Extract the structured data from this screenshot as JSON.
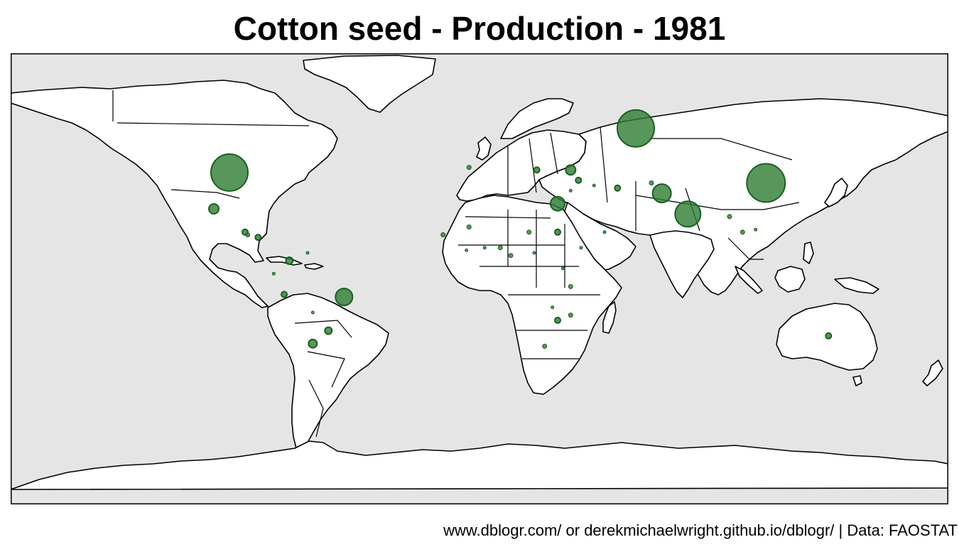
{
  "title": "Cotton seed - Production - 1981",
  "caption": "www.dblogr.com/ or derekmichaelwright.github.io/dblogr/ | Data: FAOSTAT",
  "colors": {
    "ocean": "#e5e5e5",
    "land": "#ffffff",
    "border": "#000000",
    "bubble_fill": "#2e7d32",
    "bubble_stroke": "#1b5e20"
  },
  "map_data": {
    "type": "proportional-symbol-map",
    "metric": "Cotton seed production",
    "year": 1981,
    "note": "Bubble size encodes relative production (approximate, read from symbol sizes)",
    "points": [
      {
        "country": "USSR",
        "lon": 60,
        "lat": 55,
        "size": 26
      },
      {
        "country": "China",
        "lon": 110,
        "lat": 34,
        "size": 27
      },
      {
        "country": "United States",
        "lon": -96,
        "lat": 38,
        "size": 26
      },
      {
        "country": "India",
        "lon": 80,
        "lat": 22,
        "size": 18
      },
      {
        "country": "Pakistan",
        "lon": 70,
        "lat": 30,
        "size": 13
      },
      {
        "country": "Brazil",
        "lon": -52,
        "lat": -10,
        "size": 12
      },
      {
        "country": "Egypt",
        "lon": 30,
        "lat": 26,
        "size": 10
      },
      {
        "country": "Mexico",
        "lon": -102,
        "lat": 24,
        "size": 7
      },
      {
        "country": "Turkey",
        "lon": 35,
        "lat": 39,
        "size": 7
      },
      {
        "country": "Argentina",
        "lon": -64,
        "lat": -28,
        "size": 6
      },
      {
        "country": "Sudan",
        "lon": 30,
        "lat": 15,
        "size": 4
      },
      {
        "country": "Colombia",
        "lon": -73,
        "lat": 4,
        "size": 5
      },
      {
        "country": "Greece",
        "lon": 22,
        "lat": 39,
        "size": 4
      },
      {
        "country": "Syria",
        "lon": 38,
        "lat": 35,
        "size": 4
      },
      {
        "country": "Iran",
        "lon": 53,
        "lat": 32,
        "size": 4
      },
      {
        "country": "Afghanistan",
        "lon": 66,
        "lat": 34,
        "size": 3
      },
      {
        "country": "Nicaragua",
        "lon": -85,
        "lat": 13,
        "size": 4
      },
      {
        "country": "Guatemala",
        "lon": -90,
        "lat": 15,
        "size": 4
      },
      {
        "country": "El Salvador",
        "lon": -89,
        "lat": 14,
        "size": 3
      },
      {
        "country": "Peru",
        "lon": -75,
        "lat": -9,
        "size": 4
      },
      {
        "country": "Paraguay",
        "lon": -58,
        "lat": -23,
        "size": 5
      },
      {
        "country": "Tanzania",
        "lon": 35,
        "lat": -6,
        "size": 3
      },
      {
        "country": "Mozambique",
        "lon": 35,
        "lat": -17,
        "size": 3
      },
      {
        "country": "Zimbabwe",
        "lon": 30,
        "lat": -19,
        "size": 4
      },
      {
        "country": "South Africa",
        "lon": 25,
        "lat": -29,
        "size": 3
      },
      {
        "country": "Australia",
        "lon": 134,
        "lat": -25,
        "size": 4
      },
      {
        "country": "Spain",
        "lon": -4,
        "lat": 40,
        "size": 3
      },
      {
        "country": "Chad",
        "lon": 19,
        "lat": 15,
        "size": 3
      },
      {
        "country": "Mali",
        "lon": -4,
        "lat": 17,
        "size": 3
      },
      {
        "country": "Ivory Coast",
        "lon": -5,
        "lat": 8,
        "size": 2
      },
      {
        "country": "Nigeria",
        "lon": 8,
        "lat": 9,
        "size": 3
      },
      {
        "country": "Cameroon",
        "lon": 12,
        "lat": 6,
        "size": 3
      },
      {
        "country": "Uganda",
        "lon": 32,
        "lat": 1,
        "size": 2
      },
      {
        "country": "Ethiopia",
        "lon": 39,
        "lat": 9,
        "size": 2
      },
      {
        "country": "Burma",
        "lon": 96,
        "lat": 21,
        "size": 3
      },
      {
        "country": "Thailand",
        "lon": 101,
        "lat": 15,
        "size": 3
      },
      {
        "country": "Senegal",
        "lon": -14,
        "lat": 14,
        "size": 3
      },
      {
        "country": "Benin",
        "lon": 2,
        "lat": 9,
        "size": 2
      },
      {
        "country": "Central African Rep.",
        "lon": 21,
        "lat": 7,
        "size": 2
      },
      {
        "country": "Zambia",
        "lon": 28,
        "lat": -14,
        "size": 2
      },
      {
        "country": "Venezuela",
        "lon": -66,
        "lat": 7,
        "size": 2
      },
      {
        "country": "Bolivia",
        "lon": -64,
        "lat": -16,
        "size": 2
      },
      {
        "country": "Ecuador",
        "lon": -79,
        "lat": -1,
        "size": 2
      },
      {
        "country": "Iraq",
        "lon": 44,
        "lat": 33,
        "size": 2
      },
      {
        "country": "Israel",
        "lon": 35,
        "lat": 31,
        "size": 2
      },
      {
        "country": "Vietnam",
        "lon": 106,
        "lat": 16,
        "size": 2
      },
      {
        "country": "Yemen",
        "lon": 48,
        "lat": 15,
        "size": 2
      }
    ]
  }
}
